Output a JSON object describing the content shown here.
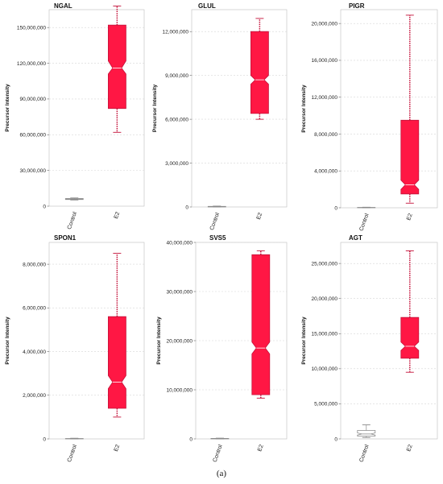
{
  "caption": "(a)",
  "colors": {
    "e2_fill": "#ff1744",
    "e2_stroke": "#c4123a",
    "control_stroke": "#8a8a8a",
    "grid": "#d6d6d6",
    "frame": "#bdbdbd"
  },
  "chart_data": [
    {
      "type": "box",
      "title": "NGAL",
      "ylabel": "Precursor Intensity",
      "categories": [
        "Control",
        "E2"
      ],
      "ylim": [
        0,
        165000000
      ],
      "yticks": [
        0,
        30000000,
        60000000,
        90000000,
        120000000,
        150000000
      ],
      "ytick_labels": [
        "0",
        "30,000,000",
        "60,000,000",
        "90,000,000",
        "120,000,000",
        "150,000,000"
      ],
      "boxes": [
        {
          "name": "Control",
          "whislo": 5200000,
          "q1": 5600000,
          "med": 6000000,
          "q3": 6400000,
          "whishi": 6900000,
          "notchlo": 5800000,
          "notchhi": 6200000
        },
        {
          "name": "E2",
          "whislo": 62000000,
          "q1": 82000000,
          "med": 116000000,
          "q3": 152000000,
          "whishi": 168000000,
          "notchlo": 111000000,
          "notchhi": 122000000
        }
      ]
    },
    {
      "type": "box",
      "title": "GLUL",
      "ylabel": "Precursor Intensity",
      "categories": [
        "Control",
        "E2"
      ],
      "ylim": [
        0,
        13500000
      ],
      "yticks": [
        0,
        3000000,
        6000000,
        9000000,
        12000000
      ],
      "ytick_labels": [
        "0",
        "3,000,000",
        "6,000,000",
        "9,000,000",
        "12,000,000"
      ],
      "boxes": [
        {
          "name": "Control",
          "whislo": 0,
          "q1": 0,
          "med": 20000,
          "q3": 40000,
          "whishi": 60000,
          "notchlo": 10000,
          "notchhi": 30000
        },
        {
          "name": "E2",
          "whislo": 6000000,
          "q1": 6400000,
          "med": 8700000,
          "q3": 12000000,
          "whishi": 12900000,
          "notchlo": 8400000,
          "notchhi": 9000000
        }
      ]
    },
    {
      "type": "box",
      "title": "PIGR",
      "ylabel": "Precursor Intensity",
      "categories": [
        "Control",
        "E2"
      ],
      "ylim": [
        0,
        21500000
      ],
      "yticks": [
        0,
        4000000,
        8000000,
        12000000,
        16000000,
        20000000
      ],
      "ytick_labels": [
        "0",
        "4,000,000",
        "8,000,000",
        "12,000,000",
        "16,000,000",
        "20,000,000"
      ],
      "boxes": [
        {
          "name": "Control",
          "whislo": 0,
          "q1": 0,
          "med": 20000,
          "q3": 40000,
          "whishi": 60000,
          "notchlo": 10000,
          "notchhi": 30000
        },
        {
          "name": "E2",
          "whislo": 500000,
          "q1": 1500000,
          "med": 2500000,
          "q3": 9500000,
          "whishi": 20900000,
          "notchlo": 2000000,
          "notchhi": 3000000
        }
      ]
    },
    {
      "type": "box",
      "title": "SPON1",
      "ylabel": "Precursor Intensity",
      "categories": [
        "Control",
        "E2"
      ],
      "ylim": [
        0,
        9000000
      ],
      "yticks": [
        0,
        2000000,
        4000000,
        6000000,
        8000000
      ],
      "ytick_labels": [
        "0",
        "2,000,000",
        "4,000,000",
        "6,000,000",
        "8,000,000"
      ],
      "boxes": [
        {
          "name": "Control",
          "whislo": 0,
          "q1": 0,
          "med": 10000,
          "q3": 20000,
          "whishi": 30000,
          "notchlo": 5000,
          "notchhi": 15000
        },
        {
          "name": "E2",
          "whislo": 1000000,
          "q1": 1400000,
          "med": 2600000,
          "q3": 5600000,
          "whishi": 8500000,
          "notchlo": 2300000,
          "notchhi": 2900000
        }
      ]
    },
    {
      "type": "box",
      "title": "SVS5",
      "ylabel": "Precursor Intensity",
      "categories": [
        "Control",
        "E2"
      ],
      "ylim": [
        0,
        40000000
      ],
      "yticks": [
        0,
        10000000,
        20000000,
        30000000,
        40000000
      ],
      "ytick_labels": [
        "0",
        "10,000,000",
        "20,000,000",
        "30,000,000",
        "40,000,000"
      ],
      "boxes": [
        {
          "name": "Control",
          "whislo": 0,
          "q1": 0,
          "med": 50000,
          "q3": 100000,
          "whishi": 150000,
          "notchlo": 25000,
          "notchhi": 75000
        },
        {
          "name": "E2",
          "whislo": 8300000,
          "q1": 9000000,
          "med": 18500000,
          "q3": 37500000,
          "whishi": 38300000,
          "notchlo": 17300000,
          "notchhi": 19700000
        }
      ]
    },
    {
      "type": "box",
      "title": "AGT",
      "ylabel": "Precursor Intensity",
      "categories": [
        "Control",
        "E2"
      ],
      "ylim": [
        0,
        28000000
      ],
      "yticks": [
        0,
        5000000,
        10000000,
        15000000,
        20000000,
        25000000
      ],
      "ytick_labels": [
        "0",
        "5,000,000",
        "10,000,000",
        "15,000,000",
        "20,000,000",
        "25,000,000"
      ],
      "boxes": [
        {
          "name": "Control",
          "whislo": 200000,
          "q1": 400000,
          "med": 700000,
          "q3": 1200000,
          "whishi": 2000000,
          "notchlo": 550000,
          "notchhi": 850000
        },
        {
          "name": "E2",
          "whislo": 9500000,
          "q1": 11500000,
          "med": 13200000,
          "q3": 17300000,
          "whishi": 26800000,
          "notchlo": 12600000,
          "notchhi": 13800000
        }
      ]
    }
  ]
}
